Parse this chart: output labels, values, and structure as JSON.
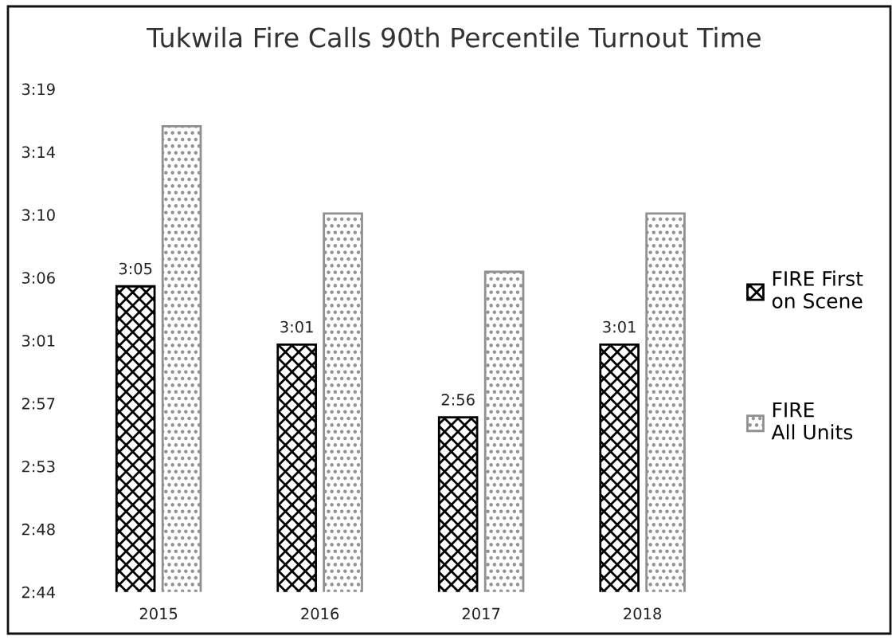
{
  "chart_data": {
    "type": "bar",
    "title": "Tukwila Fire Calls 90th Percentile Turnout Time",
    "categories": [
      "2015",
      "2016",
      "2017",
      "2018"
    ],
    "series": [
      {
        "name": "FIRE First\non Scene",
        "color": "#000000",
        "values": [
          185,
          181,
          176,
          181
        ],
        "value_labels": [
          "3:05",
          "3:01",
          "2:56",
          "3:01"
        ]
      },
      {
        "name": "FIRE\nAll Units",
        "color": "#909090",
        "values": [
          196,
          190,
          186,
          190
        ]
      }
    ],
    "ylim": [
      164,
      198.56
    ],
    "yticks": [
      {
        "value": 164,
        "label": "2:44"
      },
      {
        "value": 168.32,
        "label": "2:48"
      },
      {
        "value": 172.64,
        "label": "2:53"
      },
      {
        "value": 176.96,
        "label": "2:57"
      },
      {
        "value": 181.28,
        "label": "3:01"
      },
      {
        "value": 185.6,
        "label": "3:06"
      },
      {
        "value": 189.92,
        "label": "3:10"
      },
      {
        "value": 194.24,
        "label": "3:14"
      },
      {
        "value": 198.56,
        "label": "3:19"
      }
    ],
    "legend": "right"
  }
}
